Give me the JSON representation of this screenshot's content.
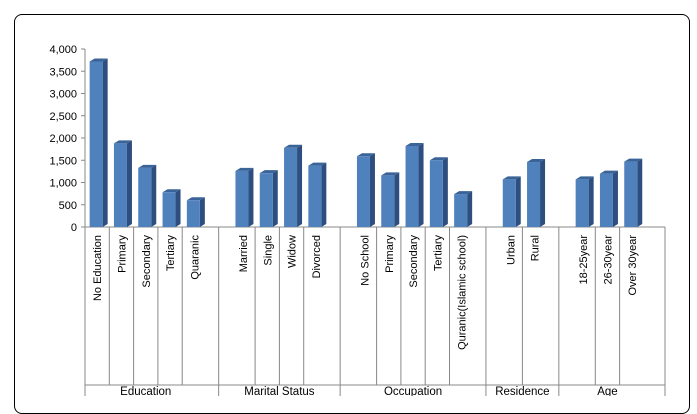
{
  "chart_data": {
    "type": "bar",
    "ylim": [
      0,
      4000
    ],
    "yticks": [
      "0",
      "500",
      "1,000",
      "1,500",
      "2,000",
      "2,500",
      "3,000",
      "3,500",
      "4,000"
    ],
    "grid": false,
    "legend": "none",
    "bar_color": "#4F81BD",
    "groups": [
      {
        "name": "Education",
        "categories": [
          "No Education",
          "Primary",
          "Secondary",
          "Tertiary",
          "Quaranic"
        ],
        "values": [
          3720,
          1880,
          1330,
          780,
          600
        ]
      },
      {
        "name": "Marital Status",
        "categories": [
          "Married",
          "Single",
          "Widow",
          "Divorced"
        ],
        "values": [
          1260,
          1210,
          1780,
          1380
        ]
      },
      {
        "name": "Occupation",
        "categories": [
          "No School",
          "Primary",
          "Secondary",
          "Tertiary",
          "Quranic(Islamic school)"
        ],
        "values": [
          1590,
          1160,
          1820,
          1500,
          740
        ]
      },
      {
        "name": "Residence",
        "categories": [
          "Urban",
          "Rural"
        ],
        "values": [
          1070,
          1460
        ]
      },
      {
        "name": "Age",
        "categories": [
          "18-25year",
          "26-30year",
          "Over 30year"
        ],
        "values": [
          1070,
          1200,
          1470
        ]
      }
    ]
  }
}
